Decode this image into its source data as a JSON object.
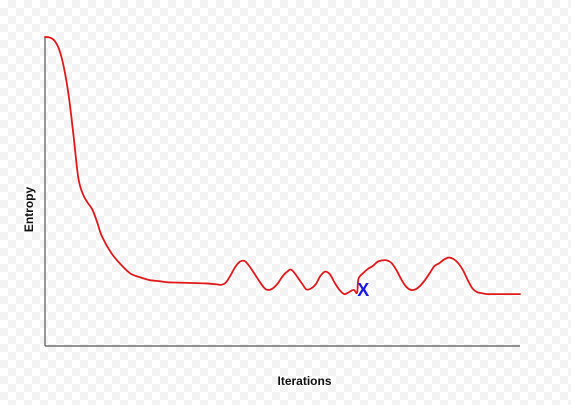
{
  "chart_data": {
    "type": "line",
    "title": "",
    "xlabel": "Iterations",
    "ylabel": "Entropy",
    "xlim": [
      0,
      100
    ],
    "ylim": [
      0,
      100
    ],
    "grid": false,
    "legend": "none",
    "series": [
      {
        "color": "#e0191a",
        "x": [
          0,
          1,
          2,
          3,
          4,
          5,
          6,
          7,
          8,
          9,
          10,
          11,
          12,
          14,
          16,
          18,
          20,
          22,
          24,
          26,
          28,
          30,
          32,
          34,
          36,
          37,
          38,
          39,
          40,
          41,
          42,
          43,
          44,
          46,
          47,
          48,
          49,
          50,
          51,
          52,
          54,
          55,
          56,
          57,
          58,
          59,
          60,
          61,
          62,
          63,
          64,
          65,
          65.7,
          66,
          67,
          68,
          69,
          70,
          71,
          72,
          73,
          74,
          75,
          76,
          77,
          78,
          79,
          80,
          81,
          82,
          83,
          84,
          85,
          86,
          87,
          88,
          89,
          90,
          91,
          92,
          93,
          94,
          95,
          96,
          97,
          98,
          99,
          100
        ],
        "y": [
          100,
          99.8,
          98.7,
          95.5,
          89,
          79,
          65,
          50,
          44,
          41,
          38.5,
          34,
          29,
          23,
          19,
          15.8,
          14.5,
          13.5,
          13.1,
          12.7,
          12.6,
          12.5,
          12.4,
          12.3,
          12.0,
          11.8,
          12.5,
          15.0,
          18.0,
          20.0,
          20.3,
          18.5,
          16.0,
          11.0,
          10.0,
          10.6,
          12.3,
          14.8,
          16.5,
          17.0,
          12.5,
          10.2,
          10.5,
          12.0,
          15.0,
          16.5,
          15.5,
          12.5,
          10.0,
          8.5,
          9.2,
          10.0,
          9.0,
          14.0,
          16.0,
          17.5,
          18.5,
          20.0,
          20.5,
          20.5,
          19.5,
          17.0,
          13.8,
          11.2,
          10.0,
          10.2,
          11.5,
          13.5,
          16.0,
          18.5,
          19.5,
          20.8,
          21.5,
          21.0,
          19.5,
          17.0,
          13.5,
          10.5,
          9.2,
          8.8,
          8.5,
          8.5,
          8.5,
          8.5,
          8.5,
          8.5,
          8.5,
          8.5
        ]
      }
    ],
    "annotations": [
      {
        "text": "X",
        "x": 67,
        "y": 10,
        "color": "#1a1adf"
      }
    ]
  }
}
